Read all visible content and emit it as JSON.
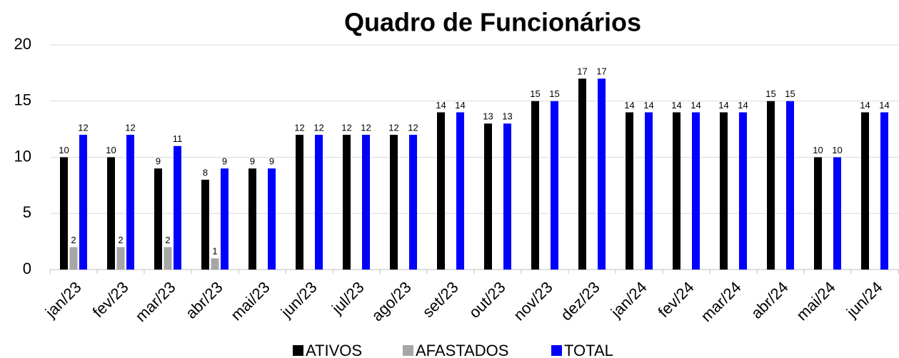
{
  "chart_data": {
    "type": "bar",
    "title": "Quadro de Funcionários",
    "categories": [
      "jan/23",
      "fev/23",
      "mar/23",
      "abr/23",
      "mai/23",
      "jun/23",
      "jul/23",
      "ago/23",
      "set/23",
      "out/23",
      "nov/23",
      "dez/23",
      "jan/24",
      "fev/24",
      "mar/24",
      "abr/24",
      "mai/24",
      "jun/24"
    ],
    "series": [
      {
        "name": "ATIVOS",
        "color": "#000000",
        "values": [
          10,
          10,
          9,
          8,
          9,
          12,
          12,
          12,
          14,
          13,
          15,
          17,
          14,
          14,
          14,
          15,
          10,
          14
        ]
      },
      {
        "name": "AFASTADOS",
        "color": "#a6a6a6",
        "values": [
          2,
          2,
          2,
          1,
          0,
          0,
          0,
          0,
          0,
          0,
          0,
          0,
          0,
          0,
          0,
          0,
          0,
          0
        ],
        "value_labels": [
          "2",
          "2",
          "2",
          "1",
          null,
          null,
          null,
          null,
          null,
          null,
          null,
          null,
          null,
          null,
          null,
          null,
          null,
          null
        ]
      },
      {
        "name": "TOTAL",
        "color": "#0000ff",
        "values": [
          12,
          12,
          11,
          9,
          9,
          12,
          12,
          12,
          14,
          13,
          15,
          17,
          14,
          14,
          14,
          15,
          10,
          14
        ]
      }
    ],
    "ylim": [
      0,
      20
    ],
    "yticks": [
      0,
      5,
      10,
      15,
      20
    ],
    "grid": true,
    "data_labels": true,
    "legend": "bottom"
  }
}
